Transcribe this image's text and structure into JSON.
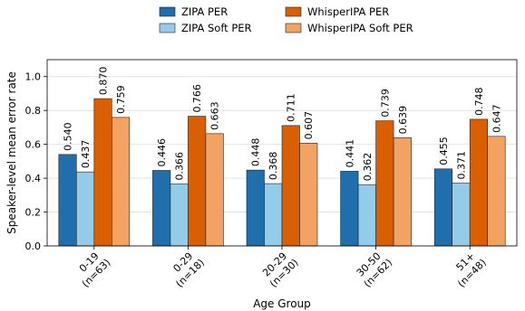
{
  "chart_data": {
    "type": "bar",
    "title": "",
    "xlabel": "Age Group",
    "ylabel": "Speaker-level mean error rate",
    "ylim": [
      0,
      1.1
    ],
    "yticks": [
      0.0,
      0.2,
      0.4,
      0.6,
      0.8,
      1.0
    ],
    "ytick_labels": [
      "0.0",
      "0.2",
      "0.4",
      "0.6",
      "0.8",
      "1.0"
    ],
    "grid": true,
    "legend_position": "top-center",
    "categories": [
      {
        "label": "0-19",
        "count": "(n=63)"
      },
      {
        "label": "0-29",
        "count": "(n=18)"
      },
      {
        "label": "20-29",
        "count": "(n=30)"
      },
      {
        "label": "30-50",
        "count": "(n=62)"
      },
      {
        "label": "51+",
        "count": "(n=48)"
      }
    ],
    "series": [
      {
        "name": "ZIPA PER",
        "color": "#1f6fad",
        "values": [
          0.54,
          0.446,
          0.448,
          0.441,
          0.455
        ],
        "labels": [
          "0.540",
          "0.446",
          "0.448",
          "0.441",
          "0.455"
        ]
      },
      {
        "name": "ZIPA Soft PER",
        "color": "#94cbe8",
        "values": [
          0.437,
          0.366,
          0.368,
          0.362,
          0.371
        ],
        "labels": [
          "0.437",
          "0.366",
          "0.368",
          "0.362",
          "0.371"
        ]
      },
      {
        "name": "WhisperIPA PER",
        "color": "#d95f02",
        "values": [
          0.87,
          0.766,
          0.711,
          0.739,
          0.748
        ],
        "labels": [
          "0.870",
          "0.766",
          "0.711",
          "0.739",
          "0.748"
        ]
      },
      {
        "name": "WhisperIPA Soft PER",
        "color": "#f4a261",
        "values": [
          0.759,
          0.663,
          0.607,
          0.639,
          0.647
        ],
        "labels": [
          "0.759",
          "0.663",
          "0.607",
          "0.639",
          "0.647"
        ]
      }
    ]
  }
}
